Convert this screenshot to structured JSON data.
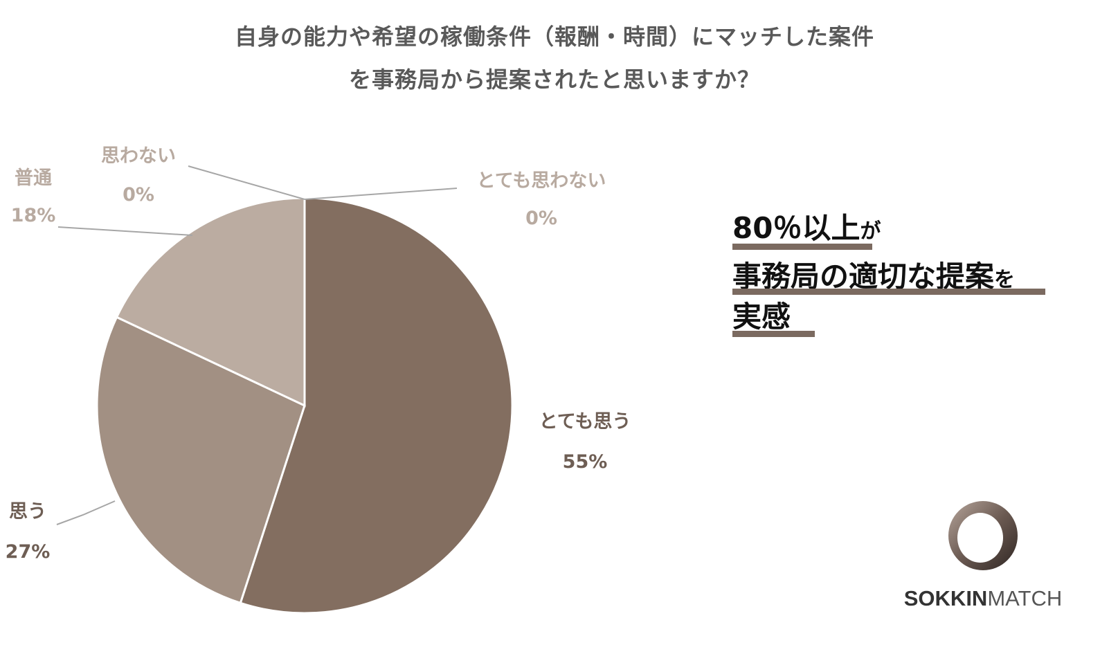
{
  "title_line1": "自身の能力や希望の稼働条件（報酬・時間）にマッチした案件",
  "title_line2": "を事務局から提案されたと思いますか？",
  "chart_data": {
    "type": "pie",
    "title": "自身の能力や希望の稼働条件（報酬・時間）にマッチした案件を事務局から提案されたと思いますか？",
    "slices": [
      {
        "label": "とても思う",
        "value": 55,
        "value_label": "55%",
        "color": "#836e60"
      },
      {
        "label": "思う",
        "value": 27,
        "value_label": "27%",
        "color": "#a29083"
      },
      {
        "label": "普通",
        "value": 18,
        "value_label": "18%",
        "color": "#bbaca1"
      },
      {
        "label": "思わない",
        "value": 0,
        "value_label": "0%",
        "color": "#bbaca1"
      },
      {
        "label": "とても思わない",
        "value": 0,
        "value_label": "0%",
        "color": "#bbaca1"
      }
    ]
  },
  "callout": {
    "line1_big": "80％以上",
    "line1_small": "が",
    "line2_big": "事務局の適切な提案",
    "line2_small": "を",
    "line3_big": "実感"
  },
  "logo": {
    "part1": "SOKKIN",
    "part2": "MATCH"
  },
  "colors": {
    "label_dark": "#6e5e54",
    "label_light": "#b8aaa0",
    "underline": "#7b6a60"
  }
}
